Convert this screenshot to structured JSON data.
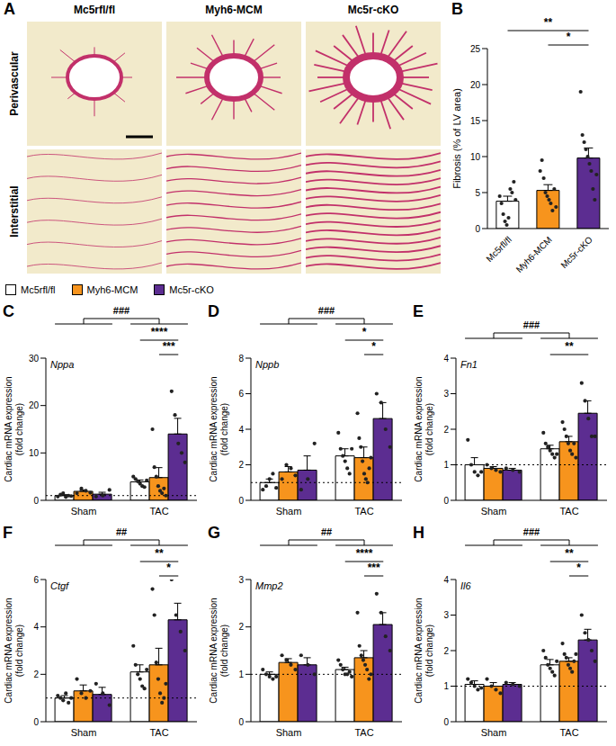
{
  "panel_a": {
    "panel": "A",
    "columns": [
      "Mc5rfl/fl",
      "Myh6-MCM",
      "Mc5r-cKO"
    ],
    "rows": [
      "Perivascular",
      "Interstitial"
    ]
  },
  "chart_data": [
    {
      "panel": "B",
      "type": "bar",
      "y_label": "Fibrosis (% of LV area)",
      "categories": [
        "Mc5rfl/fl",
        "Myh6-MCM",
        "Mc5r-cKO"
      ],
      "values": [
        3.8,
        5.3,
        9.8
      ],
      "errors": [
        0.7,
        0.8,
        1.4
      ],
      "points": [
        [
          4.5,
          3.5,
          2,
          1,
          0.5,
          1.5,
          5.5,
          5,
          6.5,
          4
        ],
        [
          8,
          9.5,
          7,
          5,
          4.5,
          4,
          3.5,
          2.5,
          5.5,
          3
        ],
        [
          19,
          13,
          12,
          11,
          10,
          9,
          8,
          5.5,
          4,
          7.5
        ]
      ],
      "colors": [
        "#ffffff",
        "#f7941d",
        "#5c2d91"
      ],
      "ylim": [
        0,
        25
      ],
      "yticks": [
        0,
        5,
        10,
        15,
        20,
        25
      ],
      "significance": [
        {
          "from": "Mc5rfl/fl",
          "to": "Mc5r-cKO",
          "label": "**"
        },
        {
          "from": "Myh6-MCM",
          "to": "Mc5r-cKO",
          "label": "*"
        }
      ]
    },
    {
      "panel": "C",
      "type": "bar",
      "gene": "Nppa",
      "y_label": "Cardiac mRNA expression (fold change)",
      "categories": [
        "Sham",
        "TAC"
      ],
      "ylim": [
        0,
        30
      ],
      "yticks": [
        0,
        10,
        20,
        30
      ],
      "reference_y": 1,
      "legend": "top",
      "series": [
        {
          "name": "Mc5rfl/fl",
          "color": "#ffffff",
          "values": [
            1.0,
            3.9
          ],
          "errors": [
            0.2,
            0.4
          ],
          "points": [
            [
              0.8,
              1.2,
              1.5,
              0.7,
              1.0,
              0.9
            ],
            [
              5,
              4.5,
              4,
              3.5,
              3,
              2.8,
              4.2
            ]
          ]
        },
        {
          "name": "Myh6-MCM",
          "color": "#f7941d",
          "values": [
            1.9,
            4.8
          ],
          "errors": [
            0.3,
            2.1
          ],
          "points": [
            [
              1.5,
              2.5,
              2.0,
              1.6
            ],
            [
              15,
              7,
              5,
              3,
              2,
              1.5,
              2.5,
              1
            ]
          ]
        },
        {
          "name": "Mc5r-cKO",
          "color": "#5c2d91",
          "values": [
            1.3,
            14.0
          ],
          "errors": [
            0.4,
            3.3
          ],
          "points": [
            [
              0.8,
              1.0,
              2.2
            ],
            [
              23,
              18,
              12,
              10,
              8
            ]
          ]
        }
      ],
      "group_significance": "###",
      "significance": [
        {
          "category": "TAC",
          "from": "Mc5rfl/fl",
          "to": "Mc5r-cKO",
          "label": "****"
        },
        {
          "category": "TAC",
          "from": "Myh6-MCM",
          "to": "Mc5r-cKO",
          "label": "***"
        }
      ]
    },
    {
      "panel": "D",
      "type": "bar",
      "gene": "Nppb",
      "y_label": "Cardiac mRNA expression (fold change)",
      "categories": [
        "Sham",
        "TAC"
      ],
      "ylim": [
        0,
        8
      ],
      "yticks": [
        0,
        2,
        4,
        6,
        8
      ],
      "reference_y": 1,
      "series": [
        {
          "name": "Mc5rfl/fl",
          "color": "#ffffff",
          "values": [
            1.0,
            2.5
          ],
          "errors": [
            0.2,
            0.4
          ],
          "points": [
            [
              0.6,
              0.8,
              1.2,
              1.5,
              0.7
            ],
            [
              3.8,
              2.9,
              2.5,
              2.2,
              1.8,
              1.5,
              2.9
            ]
          ]
        },
        {
          "name": "Myh6-MCM",
          "color": "#f7941d",
          "values": [
            1.6,
            2.4
          ],
          "errors": [
            0.3,
            0.6
          ],
          "points": [
            [
              1.2,
              2.0,
              1.8,
              1.4
            ],
            [
              4.9,
              3.5,
              3.0,
              2.2,
              1.5,
              1.2,
              1.0,
              1.8,
              2.4
            ]
          ]
        },
        {
          "name": "Mc5r-cKO",
          "color": "#5c2d91",
          "values": [
            1.7,
            4.6
          ],
          "errors": [
            0.8,
            0.9
          ],
          "points": [
            [
              0.6,
              1.2,
              3.2
            ],
            [
              6.0,
              5.5,
              4.0,
              3.0
            ]
          ]
        }
      ],
      "group_significance": "###",
      "significance": [
        {
          "category": "TAC",
          "from": "Mc5rfl/fl",
          "to": "Mc5r-cKO",
          "label": "*"
        },
        {
          "category": "TAC",
          "from": "Myh6-MCM",
          "to": "Mc5r-cKO",
          "label": "*"
        }
      ]
    },
    {
      "panel": "E",
      "type": "bar",
      "gene": "Fn1",
      "y_label": "Cardiac mRNA expression (fold change)",
      "categories": [
        "Sham",
        "TAC"
      ],
      "ylim": [
        0,
        4
      ],
      "yticks": [
        0,
        1,
        2,
        3,
        4
      ],
      "reference_y": 1,
      "series": [
        {
          "name": "Mc5rfl/fl",
          "color": "#ffffff",
          "values": [
            1.0,
            1.45
          ],
          "errors": [
            0.2,
            0.1
          ],
          "points": [
            [
              1.7,
              1.0,
              0.8,
              0.7,
              0.8
            ],
            [
              1.9,
              1.6,
              1.5,
              1.4,
              1.3,
              1.2,
              1.3
            ]
          ]
        },
        {
          "name": "Myh6-MCM",
          "color": "#f7941d",
          "values": [
            0.9,
            1.65
          ],
          "errors": [
            0.05,
            0.15
          ],
          "points": [
            [
              1.0,
              0.9,
              0.85,
              0.8
            ],
            [
              2.2,
              2.0,
              1.8,
              1.6,
              1.4,
              1.3,
              1.6,
              1.2
            ]
          ]
        },
        {
          "name": "Mc5r-cKO",
          "color": "#5c2d91",
          "values": [
            0.85,
            2.45
          ],
          "errors": [
            0.05,
            0.35
          ],
          "points": [
            [
              0.9,
              0.85,
              0.8
            ],
            [
              3.3,
              2.8,
              2.3,
              1.8,
              1.8
            ]
          ]
        }
      ],
      "group_significance": "###",
      "significance": [
        {
          "category": "TAC",
          "from": "Mc5rfl/fl",
          "to": "Mc5r-cKO",
          "label": "**"
        }
      ]
    },
    {
      "panel": "F",
      "type": "bar",
      "gene": "Ctgf",
      "y_label": "Cardiac mRNA expression (fold change)",
      "categories": [
        "Sham",
        "TAC"
      ],
      "ylim": [
        0,
        6
      ],
      "yticks": [
        0,
        2,
        4,
        6
      ],
      "reference_y": 1,
      "series": [
        {
          "name": "Mc5rfl/fl",
          "color": "#ffffff",
          "values": [
            1.0,
            2.1
          ],
          "errors": [
            0.1,
            0.3
          ],
          "points": [
            [
              1.1,
              1.0,
              0.9,
              1.2,
              0.8,
              1.0
            ],
            [
              3.2,
              2.4,
              2.0,
              1.8,
              1.5,
              1.4,
              2.2
            ]
          ]
        },
        {
          "name": "Myh6-MCM",
          "color": "#f7941d",
          "values": [
            1.3,
            2.4
          ],
          "errors": [
            0.25,
            0.7
          ],
          "points": [
            [
              1.8,
              1.2,
              1.0,
              1.3
            ],
            [
              5.6,
              4.5,
              2.5,
              1.8,
              1.2,
              0.8,
              1.0,
              1.6
            ]
          ]
        },
        {
          "name": "Mc5r-cKO",
          "color": "#5c2d91",
          "values": [
            1.15,
            4.3
          ],
          "errors": [
            0.3,
            0.7
          ],
          "points": [
            [
              1.6,
              1.2,
              0.7
            ],
            [
              6.0,
              4.5,
              3.8,
              3.0
            ]
          ]
        }
      ],
      "group_significance": "##",
      "significance": [
        {
          "category": "TAC",
          "from": "Mc5rfl/fl",
          "to": "Mc5r-cKO",
          "label": "**"
        },
        {
          "category": "TAC",
          "from": "Myh6-MCM",
          "to": "Mc5r-cKO",
          "label": "*"
        }
      ]
    },
    {
      "panel": "G",
      "type": "bar",
      "gene": "Mmp2",
      "y_label": "Cardiac mRNA expression (fold change)",
      "categories": [
        "Sham",
        "TAC"
      ],
      "ylim": [
        0,
        3
      ],
      "yticks": [
        0,
        1,
        2,
        3
      ],
      "reference_y": 1,
      "series": [
        {
          "name": "Mc5rfl/fl",
          "color": "#ffffff",
          "values": [
            1.0,
            1.1
          ],
          "errors": [
            0.05,
            0.05
          ],
          "points": [
            [
              1.1,
              1.0,
              0.95,
              0.9,
              0.95
            ],
            [
              1.3,
              1.2,
              1.1,
              1.0,
              1.0,
              1.05,
              0.95
            ]
          ]
        },
        {
          "name": "Myh6-MCM",
          "color": "#f7941d",
          "values": [
            1.25,
            1.35
          ],
          "errors": [
            0.08,
            0.15
          ],
          "points": [
            [
              1.4,
              1.3,
              1.2,
              1.1
            ],
            [
              2.3,
              1.6,
              1.4,
              1.3,
              1.2,
              1.1,
              0.9,
              1.0
            ]
          ]
        },
        {
          "name": "Mc5r-cKO",
          "color": "#5c2d91",
          "values": [
            1.2,
            2.05
          ],
          "errors": [
            0.15,
            0.25
          ],
          "points": [
            [
              1.4,
              1.2,
              1.0
            ],
            [
              2.7,
              2.3,
              1.8,
              1.5
            ]
          ]
        }
      ],
      "group_significance": "##",
      "significance": [
        {
          "category": "TAC",
          "from": "Mc5rfl/fl",
          "to": "Mc5r-cKO",
          "label": "****"
        },
        {
          "category": "TAC",
          "from": "Myh6-MCM",
          "to": "Mc5r-cKO",
          "label": "***"
        }
      ]
    },
    {
      "panel": "H",
      "type": "bar",
      "gene": "Il6",
      "y_label": "Cardiac mRNA expression (fold change)",
      "categories": [
        "Sham",
        "TAC"
      ],
      "ylim": [
        0,
        4
      ],
      "yticks": [
        0,
        1,
        2,
        3,
        4
      ],
      "reference_y": 1,
      "series": [
        {
          "name": "Mc5rfl/fl",
          "color": "#ffffff",
          "values": [
            1.05,
            1.6
          ],
          "errors": [
            0.1,
            0.15
          ],
          "points": [
            [
              1.2,
              1.1,
              1.0,
              0.9,
              0.95
            ],
            [
              2.0,
              1.8,
              1.6,
              1.5,
              1.4,
              1.3,
              1.7
            ]
          ]
        },
        {
          "name": "Myh6-MCM",
          "color": "#f7941d",
          "values": [
            1.0,
            1.7
          ],
          "errors": [
            0.1,
            0.1
          ],
          "points": [
            [
              1.2,
              1.0,
              0.9,
              0.8
            ],
            [
              2.2,
              1.9,
              1.8,
              1.6,
              1.5,
              1.4,
              1.7,
              1.9
            ]
          ]
        },
        {
          "name": "Mc5r-cKO",
          "color": "#5c2d91",
          "values": [
            1.05,
            2.3
          ],
          "errors": [
            0.05,
            0.3
          ],
          "points": [
            [
              1.1,
              1.05,
              1.0
            ],
            [
              3.0,
              2.5,
              2.3,
              2.0,
              1.7
            ]
          ]
        }
      ],
      "group_significance": "###",
      "significance": [
        {
          "category": "TAC",
          "from": "Mc5rfl/fl",
          "to": "Mc5r-cKO",
          "label": "**"
        },
        {
          "category": "TAC",
          "from": "Myh6-MCM",
          "to": "Mc5r-cKO",
          "label": "*"
        }
      ]
    }
  ]
}
